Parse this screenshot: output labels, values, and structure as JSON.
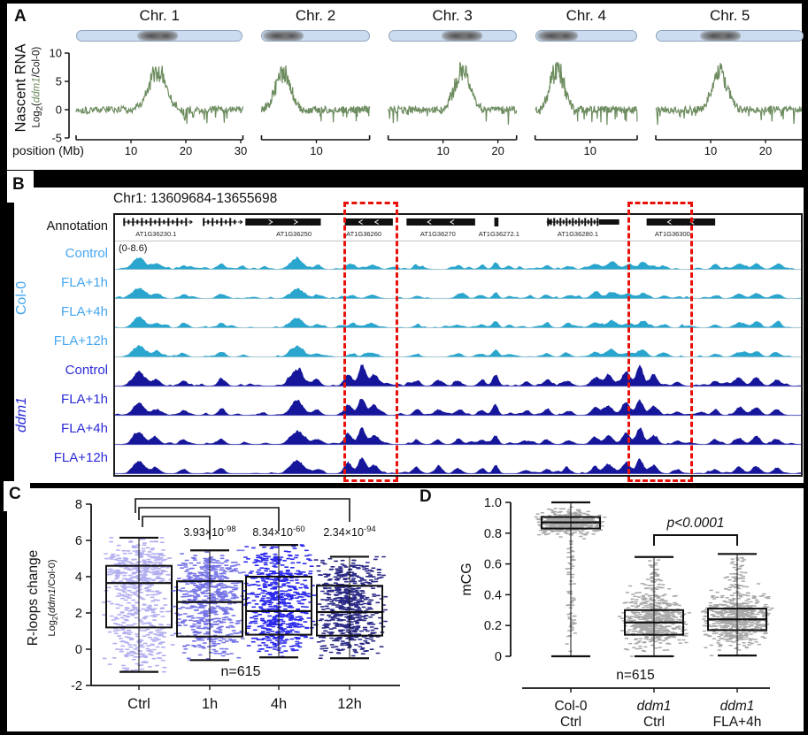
{
  "figure": {
    "panels": [
      "A",
      "B",
      "C",
      "D"
    ]
  },
  "colors": {
    "green": "#6d8c5f",
    "cyan_track": "#2aa5cd",
    "cyan_label": "#46a7f0",
    "navy_track": "#16169b",
    "navy_label": "#2b2bd6",
    "red_highlight": "#e81109",
    "gray_points": "#a9a9a9",
    "chr_fill": "#ccdcf0"
  },
  "chart_data": [
    {
      "id": "A",
      "type": "line",
      "ylabel_main": "Nascent RNA",
      "ylabel_sub_parts": {
        "log": "Log",
        "sub": "2",
        "open": "(",
        "gene": "ddm1",
        "close": "/Col-0)"
      },
      "xlabel": "position (Mb)",
      "ylim": [
        -5,
        10
      ],
      "yticks": [
        10,
        5,
        0,
        -5
      ],
      "line_color": "#6d8c5f",
      "series": [
        {
          "name": "Chr. 1",
          "length_mb": 30.4,
          "centromere_mb": 14.9,
          "peak_height": 7.4,
          "peak_width_mb": 1.6,
          "xticks": [
            10,
            20,
            30
          ]
        },
        {
          "name": "Chr. 2",
          "length_mb": 19.7,
          "centromere_mb": 3.9,
          "peak_height": 7.3,
          "peak_width_mb": 1.3,
          "xticks": [
            10
          ]
        },
        {
          "name": "Chr. 3",
          "length_mb": 23.4,
          "centromere_mb": 13.5,
          "peak_height": 7.2,
          "peak_width_mb": 1.4,
          "xticks": [
            10,
            20
          ]
        },
        {
          "name": "Chr. 4",
          "length_mb": 18.6,
          "centromere_mb": 4.0,
          "peak_height": 7.8,
          "peak_width_mb": 1.2,
          "xticks": [
            10
          ]
        },
        {
          "name": "Chr. 5",
          "length_mb": 27.0,
          "centromere_mb": 11.7,
          "peak_height": 7.3,
          "peak_width_mb": 1.3,
          "xticks": [
            10,
            20
          ]
        }
      ]
    },
    {
      "id": "B",
      "type": "genome-browser",
      "title": "Chr1: 13609684-13655698",
      "annotation_label": "Annotation",
      "range_label": "(0-8.6)",
      "groups": [
        {
          "name": "Col-0",
          "italic": false,
          "label_color": "#46a7f0",
          "track_color": "#2aa5cd",
          "baseline_color": "#d9d9d9",
          "tracks": [
            "Control",
            "FLA+1h",
            "FLA+4h",
            "FLA+12h"
          ],
          "track_scale": [
            1.0,
            0.88,
            0.92,
            0.86
          ]
        },
        {
          "name": "ddm1",
          "italic": true,
          "label_color": "#2b2bd6",
          "track_color": "#16169b",
          "baseline_color": "#8d8dd8",
          "tracks": [
            "Control",
            "FLA+1h",
            "FLA+4h",
            "FLA+12h"
          ],
          "track_scale": [
            1.1,
            0.95,
            0.9,
            0.88
          ]
        }
      ],
      "genes": [
        {
          "kind": "exons",
          "x1": 0.012,
          "x2": 0.105,
          "strand": ">",
          "label": "AT1G36230.1",
          "lx": 0.03
        },
        {
          "kind": "exons",
          "x1": 0.128,
          "x2": 0.178,
          "strand": ">",
          "label": "",
          "lx": 0.15
        },
        {
          "kind": "box",
          "x1": 0.19,
          "x2": 0.3,
          "strand": ">",
          "label": "AT1G36250",
          "lx": 0.235
        },
        {
          "kind": "box",
          "x1": 0.335,
          "x2": 0.405,
          "strand": "<",
          "label": "AT1G36260",
          "lx": 0.337
        },
        {
          "kind": "box",
          "x1": 0.425,
          "x2": 0.525,
          "strand": "<",
          "label": "AT1G36270",
          "lx": 0.445
        },
        {
          "kind": "tick",
          "x1": 0.553,
          "x2": 0.559,
          "strand": ">",
          "label": "AT1G36272.1",
          "lx": 0.53
        },
        {
          "kind": "exons-dense",
          "x1": 0.63,
          "x2": 0.735,
          "strand": "<",
          "label": "AT1G36280.1",
          "lx": 0.645
        },
        {
          "kind": "box",
          "x1": 0.775,
          "x2": 0.875,
          "strand": "<",
          "label": "AT1G36300",
          "lx": 0.787
        }
      ],
      "highlights": [
        {
          "x1": 0.335,
          "x2": 0.415
        },
        {
          "x1": 0.75,
          "x2": 0.846
        }
      ],
      "peaks_col0": [
        [
          0.035,
          0.52,
          0.008
        ],
        [
          0.06,
          0.22,
          0.006
        ],
        [
          0.1,
          0.16,
          0.005
        ],
        [
          0.155,
          0.22,
          0.005
        ],
        [
          0.265,
          0.45,
          0.009
        ],
        [
          0.295,
          0.16,
          0.005
        ],
        [
          0.345,
          0.14,
          0.006
        ],
        [
          0.375,
          0.18,
          0.007
        ],
        [
          0.44,
          0.1,
          0.005
        ],
        [
          0.5,
          0.12,
          0.005
        ],
        [
          0.535,
          0.14,
          0.005
        ],
        [
          0.555,
          0.3,
          0.004
        ],
        [
          0.575,
          0.12,
          0.004
        ],
        [
          0.63,
          0.16,
          0.005
        ],
        [
          0.66,
          0.12,
          0.005
        ],
        [
          0.7,
          0.22,
          0.007
        ],
        [
          0.725,
          0.28,
          0.008
        ],
        [
          0.75,
          0.22,
          0.006
        ],
        [
          0.77,
          0.26,
          0.006
        ],
        [
          0.8,
          0.12,
          0.005
        ],
        [
          0.875,
          0.14,
          0.005
        ],
        [
          0.91,
          0.22,
          0.007
        ],
        [
          0.935,
          0.24,
          0.006
        ],
        [
          0.965,
          0.18,
          0.006
        ]
      ],
      "peaks_ddm1": [
        [
          0.035,
          0.58,
          0.008
        ],
        [
          0.06,
          0.26,
          0.006
        ],
        [
          0.1,
          0.22,
          0.005
        ],
        [
          0.155,
          0.26,
          0.005
        ],
        [
          0.265,
          0.62,
          0.009
        ],
        [
          0.295,
          0.22,
          0.005
        ],
        [
          0.34,
          0.45,
          0.006
        ],
        [
          0.36,
          0.78,
          0.005
        ],
        [
          0.378,
          0.42,
          0.006
        ],
        [
          0.44,
          0.18,
          0.005
        ],
        [
          0.47,
          0.22,
          0.005
        ],
        [
          0.5,
          0.2,
          0.005
        ],
        [
          0.535,
          0.22,
          0.005
        ],
        [
          0.555,
          0.42,
          0.004
        ],
        [
          0.6,
          0.15,
          0.005
        ],
        [
          0.63,
          0.22,
          0.005
        ],
        [
          0.66,
          0.18,
          0.005
        ],
        [
          0.7,
          0.3,
          0.006
        ],
        [
          0.72,
          0.42,
          0.006
        ],
        [
          0.745,
          0.55,
          0.006
        ],
        [
          0.765,
          0.7,
          0.005
        ],
        [
          0.785,
          0.4,
          0.006
        ],
        [
          0.82,
          0.16,
          0.005
        ],
        [
          0.875,
          0.2,
          0.005
        ],
        [
          0.91,
          0.3,
          0.006
        ],
        [
          0.935,
          0.34,
          0.006
        ],
        [
          0.965,
          0.22,
          0.006
        ]
      ]
    },
    {
      "id": "C",
      "type": "box-scatter",
      "ylabel_main": "R-loops change",
      "ylabel_sub_parts": {
        "log": "Log",
        "sub": "2",
        "open": "(",
        "gene": "ddm1",
        "close": "/Col-0)"
      },
      "ylim": [
        -2,
        8
      ],
      "yticks": [
        8,
        6,
        4,
        2,
        0,
        -2
      ],
      "categories": [
        "Ctrl",
        "1h",
        "4h",
        "12h"
      ],
      "n_label": "n=615",
      "n_points": 615,
      "boxes": [
        {
          "color": "#b2aff0",
          "min": -1.25,
          "q1": 1.2,
          "median": 3.65,
          "q3": 4.6,
          "max": 6.15,
          "blobs": [
            [
              4.3,
              0.8,
              0.55
            ],
            [
              1.5,
              1.05,
              0.35
            ],
            [
              -0.2,
              0.55,
              0.1
            ]
          ]
        },
        {
          "color": "#7775e6",
          "min": -0.6,
          "q1": 0.7,
          "median": 2.6,
          "q3": 3.75,
          "max": 5.45,
          "blobs": [
            [
              3.3,
              0.85,
              0.5
            ],
            [
              1.1,
              0.85,
              0.35
            ],
            [
              4.6,
              0.45,
              0.15
            ]
          ]
        },
        {
          "color": "#2d2bec",
          "min": -0.45,
          "q1": 0.8,
          "median": 2.1,
          "q3": 4.0,
          "max": 5.75,
          "blobs": [
            [
              3.4,
              0.95,
              0.45
            ],
            [
              1.2,
              0.85,
              0.45
            ],
            [
              5.0,
              0.4,
              0.1
            ]
          ]
        },
        {
          "color": "#2b2a86",
          "min": -0.5,
          "q1": 0.75,
          "median": 2.05,
          "q3": 3.5,
          "max": 5.1,
          "blobs": [
            [
              3.1,
              0.85,
              0.45
            ],
            [
              1.2,
              0.85,
              0.45
            ],
            [
              4.4,
              0.4,
              0.1
            ]
          ]
        }
      ],
      "pvalues": [
        {
          "m": "3.93×10",
          "e": "-98"
        },
        {
          "m": "8.34×10",
          "e": "-60"
        },
        {
          "m": "2.34×10",
          "e": "-94"
        }
      ]
    },
    {
      "id": "D",
      "type": "box-scatter",
      "ylabel": "mCG",
      "ylim": [
        0,
        1
      ],
      "yticks": [
        "1.0",
        "0.8",
        "0.6",
        "0.4",
        "0.2",
        "0"
      ],
      "p_label": "p<0.0001",
      "n_label": "n=615",
      "n_points": 615,
      "point_color": "#a9a9a9",
      "categories": [
        {
          "line1": "Col-0",
          "line2": "Ctrl",
          "italic": false
        },
        {
          "line1": "ddm1",
          "line2": "Ctrl",
          "italic": true
        },
        {
          "line1": "ddm1",
          "line2": "FLA+4h",
          "italic": true
        }
      ],
      "boxes": [
        {
          "min": 0.0,
          "q1": 0.83,
          "median": 0.87,
          "q3": 0.905,
          "max": 1.0,
          "blobs": [
            [
              0.87,
              0.035,
              0.86
            ],
            [
              0.45,
              0.26,
              0.14
            ]
          ]
        },
        {
          "min": 0.0,
          "q1": 0.14,
          "median": 0.22,
          "q3": 0.3,
          "max": 0.645,
          "blobs": [
            [
              0.22,
              0.09,
              0.9
            ],
            [
              0.5,
              0.07,
              0.1
            ]
          ]
        },
        {
          "min": 0.005,
          "q1": 0.17,
          "median": 0.24,
          "q3": 0.31,
          "max": 0.665,
          "blobs": [
            [
              0.24,
              0.085,
              0.9
            ],
            [
              0.52,
              0.07,
              0.1
            ]
          ]
        }
      ]
    }
  ]
}
